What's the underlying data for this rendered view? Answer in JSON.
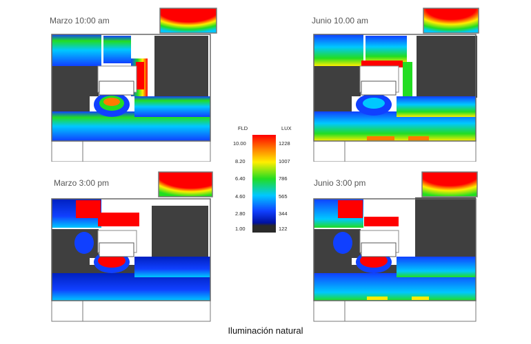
{
  "panels": [
    {
      "title": "Marzo 10:00 am"
    },
    {
      "title": "Junio 10.00 am"
    },
    {
      "title": "Marzo 3:00 pm"
    },
    {
      "title": "Junio 3:00 pm"
    }
  ],
  "legend": {
    "left_header": "FLD",
    "right_header": "LUX",
    "fld_values": [
      "10.00",
      "8.20",
      "6.40",
      "4.60",
      "2.80",
      "1.00"
    ],
    "lux_values": [
      "1228",
      "1007",
      "786",
      "565",
      "344",
      "122"
    ],
    "colors": [
      "#ff0000",
      "#ff7a00",
      "#ffee00",
      "#22dd22",
      "#00c8ff",
      "#1040ff",
      "#0010a0",
      "#2a2a2a"
    ]
  },
  "caption": "Iluminación natural"
}
